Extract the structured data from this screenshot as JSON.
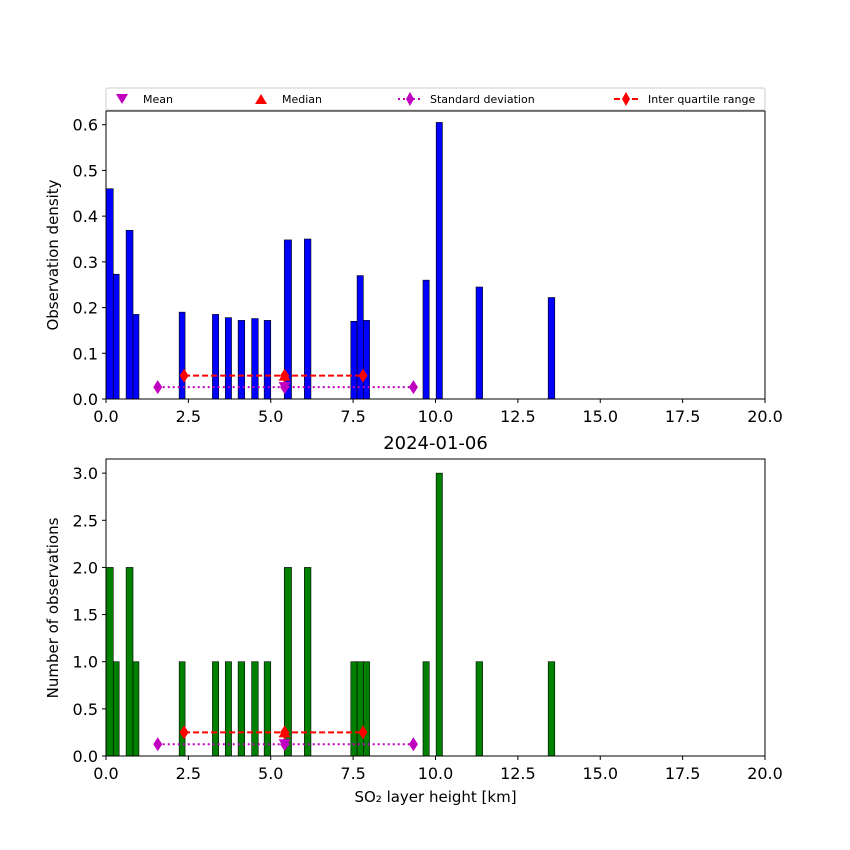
{
  "chart_data": [
    {
      "type": "bar",
      "title": "",
      "xlabel": "",
      "ylabel": "Observation density",
      "xlim": [
        0,
        20
      ],
      "ylim": [
        0,
        0.63
      ],
      "xticks": [
        0.0,
        2.5,
        5.0,
        7.5,
        10.0,
        12.5,
        15.0,
        17.5,
        20.0
      ],
      "xtick_labels": [
        "0.0",
        "2.5",
        "5.0",
        "7.5",
        "10.0",
        "12.5",
        "15.0",
        "17.5",
        "20.0"
      ],
      "yticks": [
        0.0,
        0.1,
        0.2,
        0.3,
        0.4,
        0.5,
        0.6
      ],
      "ytick_labels": [
        "0.0",
        "0.1",
        "0.2",
        "0.3",
        "0.4",
        "0.5",
        "0.6"
      ],
      "bar_color": "#0000ff",
      "bars": [
        {
          "left": 0.0,
          "right": 0.22,
          "value": 0.46
        },
        {
          "left": 0.22,
          "right": 0.4,
          "value": 0.273
        },
        {
          "left": 0.61,
          "right": 0.82,
          "value": 0.369
        },
        {
          "left": 0.82,
          "right": 1.0,
          "value": 0.185
        },
        {
          "left": 2.22,
          "right": 2.4,
          "value": 0.19
        },
        {
          "left": 3.23,
          "right": 3.42,
          "value": 0.185
        },
        {
          "left": 3.62,
          "right": 3.81,
          "value": 0.178
        },
        {
          "left": 4.01,
          "right": 4.21,
          "value": 0.172
        },
        {
          "left": 4.42,
          "right": 4.62,
          "value": 0.176
        },
        {
          "left": 4.8,
          "right": 5.0,
          "value": 0.172
        },
        {
          "left": 5.41,
          "right": 5.63,
          "value": 0.348
        },
        {
          "left": 6.02,
          "right": 6.22,
          "value": 0.35
        },
        {
          "left": 7.43,
          "right": 7.62,
          "value": 0.17
        },
        {
          "left": 7.62,
          "right": 7.81,
          "value": 0.27
        },
        {
          "left": 7.81,
          "right": 8.0,
          "value": 0.172
        },
        {
          "left": 9.62,
          "right": 9.81,
          "value": 0.26
        },
        {
          "left": 10.02,
          "right": 10.21,
          "value": 0.605
        },
        {
          "left": 11.23,
          "right": 11.43,
          "value": 0.245
        },
        {
          "left": 13.42,
          "right": 13.62,
          "value": 0.222
        }
      ],
      "markers": {
        "std_y": 0.026,
        "std_points": [
          1.57,
          5.42,
          9.33
        ],
        "iqr_y": 0.051,
        "iqr_points": [
          2.37,
          5.42,
          7.8
        ],
        "mean": {
          "x": 5.42,
          "y": 0.026
        },
        "median": {
          "x": 5.42,
          "y": 0.051
        }
      },
      "legend": {
        "placement": "top",
        "entries": [
          {
            "label": "Mean",
            "symbol": "triangle-down",
            "color": "#bf00bf"
          },
          {
            "label": "Median",
            "symbol": "triangle-up",
            "color": "#ff0000"
          },
          {
            "label": "Standard deviation",
            "symbol": "diamond-dotted-line",
            "color": "#bf00bf"
          },
          {
            "label": "Inter quartile range",
            "symbol": "diamond-dashed-line",
            "color": "#ff0000"
          }
        ]
      }
    },
    {
      "type": "bar",
      "title": "2024-01-06",
      "xlabel": "SO₂ layer height [km]",
      "ylabel": "Number of observations",
      "xlim": [
        0,
        20
      ],
      "ylim": [
        0,
        3.15
      ],
      "xticks": [
        0.0,
        2.5,
        5.0,
        7.5,
        10.0,
        12.5,
        15.0,
        17.5,
        20.0
      ],
      "xtick_labels": [
        "0.0",
        "2.5",
        "5.0",
        "7.5",
        "10.0",
        "12.5",
        "15.0",
        "17.5",
        "20.0"
      ],
      "yticks": [
        0.0,
        0.5,
        1.0,
        1.5,
        2.0,
        2.5,
        3.0
      ],
      "ytick_labels": [
        "0.0",
        "0.5",
        "1.0",
        "1.5",
        "2.0",
        "2.5",
        "3.0"
      ],
      "bar_color": "#008000",
      "bars": [
        {
          "left": 0.0,
          "right": 0.22,
          "value": 2
        },
        {
          "left": 0.22,
          "right": 0.4,
          "value": 1
        },
        {
          "left": 0.61,
          "right": 0.82,
          "value": 2
        },
        {
          "left": 0.82,
          "right": 1.0,
          "value": 1
        },
        {
          "left": 2.22,
          "right": 2.4,
          "value": 1
        },
        {
          "left": 3.23,
          "right": 3.42,
          "value": 1
        },
        {
          "left": 3.62,
          "right": 3.81,
          "value": 1
        },
        {
          "left": 4.01,
          "right": 4.21,
          "value": 1
        },
        {
          "left": 4.42,
          "right": 4.62,
          "value": 1
        },
        {
          "left": 4.8,
          "right": 5.0,
          "value": 1
        },
        {
          "left": 5.41,
          "right": 5.63,
          "value": 2
        },
        {
          "left": 6.02,
          "right": 6.22,
          "value": 2
        },
        {
          "left": 7.43,
          "right": 7.62,
          "value": 1
        },
        {
          "left": 7.62,
          "right": 7.81,
          "value": 1
        },
        {
          "left": 7.81,
          "right": 8.0,
          "value": 1
        },
        {
          "left": 9.62,
          "right": 9.81,
          "value": 1
        },
        {
          "left": 10.02,
          "right": 10.21,
          "value": 3
        },
        {
          "left": 11.23,
          "right": 11.43,
          "value": 1
        },
        {
          "left": 13.42,
          "right": 13.62,
          "value": 1
        }
      ],
      "markers": {
        "std_y": 0.125,
        "std_points": [
          1.57,
          5.42,
          9.33
        ],
        "iqr_y": 0.25,
        "iqr_points": [
          2.37,
          5.42,
          7.8
        ],
        "mean": {
          "x": 5.42,
          "y": 0.125
        },
        "median": {
          "x": 5.42,
          "y": 0.25
        }
      }
    }
  ]
}
